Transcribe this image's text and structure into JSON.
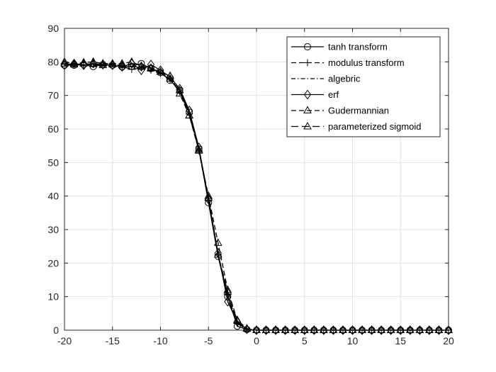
{
  "chart_data": {
    "type": "line",
    "title": "",
    "xlabel": "",
    "ylabel": "",
    "xlim": [
      -20,
      20
    ],
    "ylim": [
      0,
      90
    ],
    "x_ticks": [
      -20,
      -15,
      -10,
      -5,
      0,
      5,
      10,
      15,
      20
    ],
    "y_ticks": [
      0,
      10,
      20,
      30,
      40,
      50,
      60,
      70,
      80,
      90
    ],
    "grid": true,
    "legend_position": "top-right",
    "line_color": "#000000",
    "x": [
      -20,
      -19,
      -18,
      -17,
      -16,
      -15,
      -14,
      -13,
      -12,
      -11,
      -10,
      -9,
      -8,
      -7,
      -6,
      -5,
      -4,
      -3,
      -2,
      -1,
      0,
      1,
      2,
      3,
      4,
      5,
      6,
      7,
      8,
      9,
      10,
      11,
      12,
      13,
      14,
      15,
      16,
      17,
      18,
      19,
      20
    ],
    "series": [
      {
        "name": "tanh transform",
        "line_style": "solid",
        "marker": "circle",
        "values": [
          79.0,
          79.0,
          79.2,
          78.6,
          79.2,
          79.0,
          78.5,
          78.7,
          79.5,
          78.0,
          76.8,
          74.5,
          71.5,
          65.0,
          54.0,
          38.0,
          22.0,
          10.0,
          1.2,
          0.2,
          0,
          0,
          0,
          0,
          0,
          0,
          0,
          0,
          0,
          0,
          0,
          0,
          0,
          0,
          0,
          0,
          0,
          0,
          0,
          0,
          0
        ]
      },
      {
        "name": "modulus transform",
        "line_style": "dashed",
        "marker": "plus",
        "values": [
          79.5,
          79.2,
          79.0,
          79.3,
          78.8,
          79.5,
          78.6,
          77.8,
          78.2,
          77.5,
          76.5,
          74.8,
          71.0,
          64.5,
          53.5,
          38.5,
          22.5,
          10.5,
          2.0,
          0.3,
          0,
          0,
          0,
          0,
          0,
          0,
          0,
          0,
          0,
          0,
          0,
          0,
          0,
          0,
          0,
          0,
          0,
          0,
          0,
          0,
          0
        ]
      },
      {
        "name": "algebric",
        "line_style": "dashdot",
        "marker": "none",
        "values": [
          79.2,
          79.0,
          79.1,
          79.0,
          79.0,
          79.0,
          78.8,
          78.5,
          78.5,
          77.8,
          76.8,
          74.8,
          71.2,
          64.8,
          54.0,
          38.5,
          22.5,
          10.5,
          2.0,
          0.2,
          0,
          0,
          0,
          0,
          0,
          0,
          0,
          0,
          0,
          0,
          0,
          0,
          0,
          0,
          0,
          0,
          0,
          0,
          0,
          0,
          0
        ]
      },
      {
        "name": "erf",
        "line_style": "solid",
        "marker": "diamond",
        "values": [
          79.0,
          79.5,
          79.0,
          79.5,
          79.2,
          79.0,
          78.5,
          79.5,
          77.5,
          79.2,
          77.5,
          75.5,
          72.0,
          65.5,
          54.5,
          39.0,
          23.0,
          8.5,
          2.5,
          0.3,
          0,
          0,
          0,
          0,
          0,
          0,
          0,
          0,
          0,
          0,
          0,
          0,
          0,
          0,
          0,
          0,
          0,
          0,
          0,
          0,
          0
        ]
      },
      {
        "name": "Gudermannian",
        "line_style": "dashed",
        "marker": "triangle",
        "values": [
          80.0,
          79.5,
          79.8,
          80.0,
          79.5,
          79.5,
          79.5,
          80.0,
          78.8,
          78.2,
          77.0,
          75.8,
          70.5,
          64.0,
          53.5,
          40.0,
          26.0,
          12.0,
          3.0,
          0.5,
          0,
          0,
          0,
          0,
          0,
          0,
          0,
          0,
          0,
          0,
          0,
          0,
          0,
          0,
          0,
          0,
          0,
          0,
          0,
          0,
          0
        ]
      },
      {
        "name": "parameterized sigmoid",
        "line_style": "longdash",
        "marker": "triangle",
        "values": [
          79.5,
          79.2,
          79.5,
          79.3,
          79.0,
          79.2,
          79.0,
          78.5,
          78.5,
          78.0,
          77.0,
          75.0,
          71.5,
          64.0,
          53.8,
          39.5,
          22.5,
          11.5,
          2.8,
          0.4,
          0,
          0,
          0,
          0,
          0,
          0,
          0,
          0,
          0,
          0,
          0,
          0,
          0,
          0,
          0,
          0,
          0,
          0,
          0,
          0,
          0
        ]
      }
    ]
  }
}
